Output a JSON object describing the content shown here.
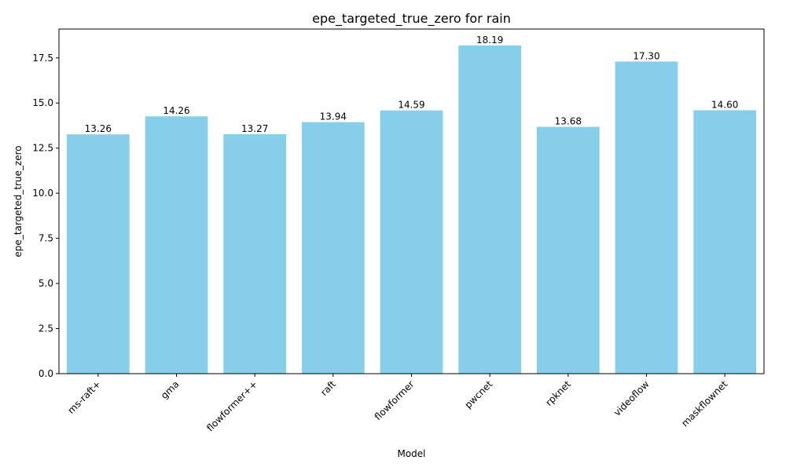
{
  "chart_data": {
    "type": "bar",
    "title": "epe_targeted_true_zero for rain",
    "xlabel": "Model",
    "ylabel": "epe_targeted_true_zero",
    "categories": [
      "ms-raft+",
      "gma",
      "flowformer++",
      "raft",
      "flowformer",
      "pwcnet",
      "rpknet",
      "videoflow",
      "maskflownet"
    ],
    "values": [
      13.26,
      14.26,
      13.27,
      13.94,
      14.59,
      18.19,
      13.68,
      17.3,
      14.6
    ],
    "value_labels": [
      "13.26",
      "14.26",
      "13.27",
      "13.94",
      "14.59",
      "18.19",
      "13.68",
      "17.30",
      "14.60"
    ],
    "ylim": [
      0,
      19.1
    ],
    "yticks": [
      0,
      2.5,
      5,
      7.5,
      10,
      12.5,
      15,
      17.5
    ],
    "ytick_labels": [
      "0.0",
      "2.5",
      "5.0",
      "7.5",
      "10.0",
      "12.5",
      "15.0",
      "17.5"
    ],
    "x_tick_rotation_deg": 45,
    "bar_color": "#87CEEB",
    "grid": false,
    "legend": "none"
  }
}
